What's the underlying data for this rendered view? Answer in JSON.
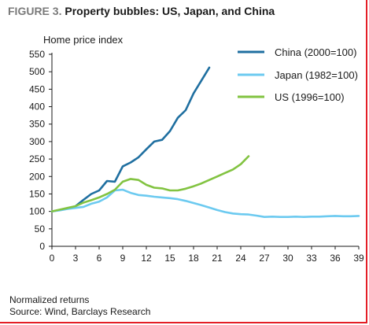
{
  "figure": {
    "label": "FIGURE 3.",
    "title": "Property bubbles: US, Japan, and China"
  },
  "notes": {
    "line1": "Normalized returns",
    "line2": "Source: Wind, Barclays Research"
  },
  "colors": {
    "china": "#1f6fa0",
    "japan": "#6ccaf0",
    "us": "#82c341",
    "frame": "#e41e26"
  },
  "chart_data": {
    "type": "line",
    "title": "Property bubbles: US, Japan, and China",
    "ylabel": "Home price index",
    "xlabel": "",
    "xlim": [
      0,
      39
    ],
    "ylim": [
      0,
      550
    ],
    "xticks": [
      0,
      3,
      6,
      9,
      12,
      15,
      18,
      21,
      24,
      27,
      30,
      33,
      36,
      39
    ],
    "yticks": [
      0,
      50,
      100,
      150,
      200,
      250,
      300,
      350,
      400,
      450,
      500,
      550
    ],
    "grid": false,
    "legend_position": "top-right",
    "series": [
      {
        "name": "China (2000=100)",
        "color": "#1f6fa0",
        "x": [
          0,
          1,
          2,
          3,
          4,
          5,
          6,
          7,
          8,
          9,
          10,
          11,
          12,
          13,
          14,
          15,
          16,
          17,
          18,
          19,
          20
        ],
        "y": [
          100,
          104,
          108,
          115,
          133,
          150,
          160,
          187,
          185,
          229,
          240,
          255,
          278,
          300,
          305,
          330,
          368,
          390,
          438,
          475,
          512
        ]
      },
      {
        "name": "Japan (1982=100)",
        "color": "#6ccaf0",
        "x": [
          0,
          1,
          2,
          3,
          4,
          5,
          6,
          7,
          8,
          9,
          10,
          11,
          12,
          13,
          14,
          15,
          16,
          17,
          18,
          19,
          20,
          21,
          22,
          23,
          24,
          25,
          26,
          27,
          28,
          29,
          30,
          31,
          32,
          33,
          34,
          35,
          36,
          37,
          38,
          39
        ],
        "y": [
          100,
          103,
          107,
          110,
          113,
          122,
          128,
          140,
          160,
          162,
          153,
          147,
          145,
          142,
          140,
          138,
          135,
          130,
          124,
          118,
          111,
          104,
          98,
          94,
          92,
          91,
          88,
          84,
          85,
          84,
          84,
          85,
          84,
          85,
          85,
          86,
          87,
          86,
          86,
          87
        ]
      },
      {
        "name": "US (1996=100)",
        "color": "#82c341",
        "x": [
          0,
          1,
          2,
          3,
          4,
          5,
          6,
          7,
          8,
          9,
          10,
          11,
          12,
          13,
          14,
          15,
          16,
          17,
          18,
          19,
          20,
          21,
          22,
          23,
          24,
          25
        ],
        "y": [
          100,
          105,
          110,
          115,
          125,
          132,
          140,
          150,
          162,
          185,
          193,
          190,
          176,
          168,
          166,
          160,
          160,
          165,
          172,
          180,
          190,
          200,
          210,
          220,
          235,
          258
        ]
      }
    ]
  }
}
